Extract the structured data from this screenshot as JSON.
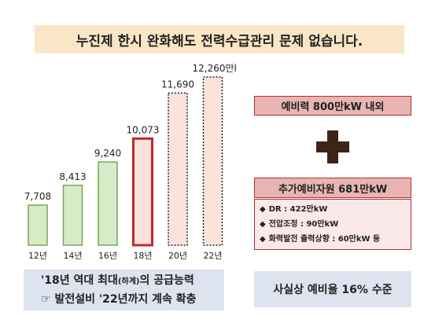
{
  "title": "누진제 한시 완화해도 전력수급관리 문제 없습니다.",
  "chart_data": {
    "type": "bar",
    "categories": [
      "12년",
      "14년",
      "16년",
      "18년",
      "20년",
      "22년"
    ],
    "values": [
      7708,
      8413,
      9240,
      10073,
      11690,
      12260
    ],
    "value_labels": [
      "7,708",
      "8,413",
      "9,240",
      "10,073",
      "11,690",
      "12,260만kW"
    ],
    "styles": [
      "actual",
      "actual",
      "actual",
      "current",
      "planned",
      "planned"
    ],
    "colors": {
      "actual_fill": "#d6ebc6",
      "actual_stroke": "#79a65a",
      "current_fill": "#fbe3dc",
      "current_stroke": "#c0282e",
      "planned_fill": "#fbe3dc",
      "planned_stroke": "#222222"
    },
    "grid": false,
    "legend": "none"
  },
  "reserve": {
    "label": "예비력 800만kW 내외"
  },
  "plus_icon": "plus-icon",
  "extra": {
    "header": "추가예비자원 681만kW",
    "items": [
      "DR : 422만kW",
      "전압조정 : 90만kW",
      "화력발전 출력상향 : 60만kW 등"
    ],
    "bullet": "◆"
  },
  "note": {
    "line1_pre": "'18년 역대 최대",
    "line1_small": "(하계)",
    "line1_post": "의 공급능력",
    "line2_icon": "☞",
    "line2": "발전설비 '22년까지 계속 확충"
  },
  "rate": {
    "label": "사실상 예비율 16% 수준"
  }
}
